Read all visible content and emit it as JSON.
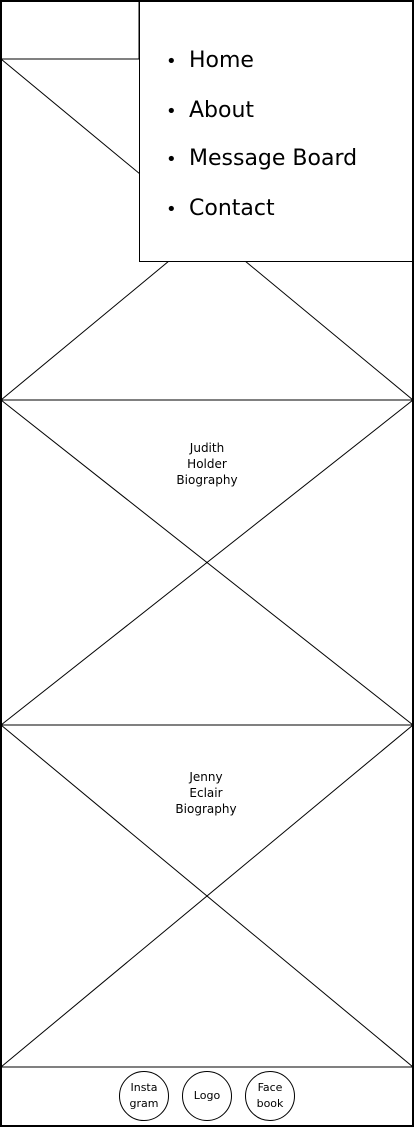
{
  "nav": {
    "items": [
      {
        "label": "Home"
      },
      {
        "label": "About"
      },
      {
        "label": "Message Board"
      },
      {
        "label": "Contact"
      }
    ]
  },
  "bios": [
    {
      "label": "Judith\nHolder\nBiography"
    },
    {
      "label": "Jenny\nEclair\nBiography"
    }
  ],
  "footer": {
    "instagram_label": "Insta\ngram",
    "logo_label": "Logo",
    "facebook_label": "Face\nbook"
  }
}
